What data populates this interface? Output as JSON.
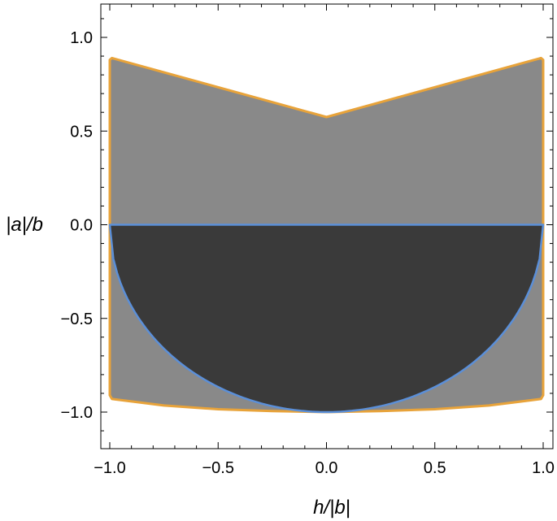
{
  "chart_data": {
    "type": "area",
    "xlabel": "h/|b|",
    "ylabel": "|a|/b",
    "xlim": [
      -1.0,
      1.0
    ],
    "ylim": [
      -1.2,
      1.2
    ],
    "x_ticks": [
      -1.0,
      -0.5,
      0.0,
      0.5,
      1.0
    ],
    "x_tick_labels": [
      "−1.0",
      "−0.5",
      "0.0",
      "0.5",
      "1.0"
    ],
    "y_ticks": [
      -1.0,
      -0.5,
      0.0,
      0.5,
      1.0
    ],
    "y_tick_labels": [
      "−1.0",
      "−0.5",
      "0.0",
      "0.5",
      "1.0"
    ],
    "grid": false,
    "series": [
      {
        "kind": "outer-region",
        "fill_color": "#898989",
        "stroke_color": "#E8A33A",
        "upper_boundary": {
          "x": [
            -1.0,
            -0.99,
            0.0,
            0.99,
            1.0
          ],
          "y": [
            0.88,
            0.89,
            0.575,
            0.89,
            0.88
          ]
        },
        "lower_boundary": {
          "x": [
            -1.0,
            -0.99,
            -0.75,
            -0.5,
            -0.25,
            0.0,
            0.25,
            0.5,
            0.75,
            0.99,
            1.0
          ],
          "y": [
            -0.91,
            -0.93,
            -0.965,
            -0.985,
            -0.995,
            -1.0,
            -0.995,
            -0.985,
            -0.965,
            -0.93,
            -0.91
          ]
        }
      },
      {
        "kind": "inner-region",
        "fill_color": "#3a3a3a",
        "stroke_color": "#5B8FD8",
        "top_y": 0.0,
        "lower_boundary_curve": "semicircle",
        "lower_boundary": {
          "x": [
            -1.0,
            -0.75,
            -0.5,
            -0.25,
            0.0,
            0.25,
            0.5,
            0.75,
            1.0
          ],
          "y": [
            0.0,
            -0.661,
            -0.866,
            -0.968,
            -1.0,
            -0.968,
            -0.866,
            -0.661,
            0.0
          ]
        }
      }
    ]
  }
}
